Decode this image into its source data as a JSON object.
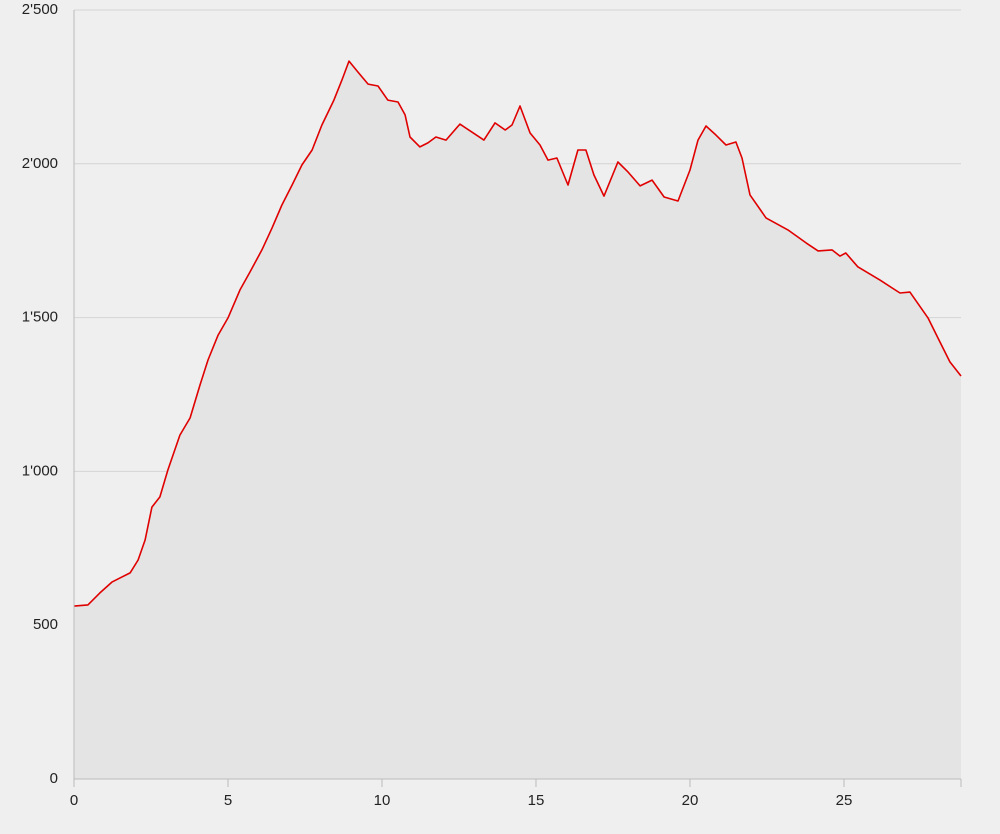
{
  "chart_data": {
    "type": "area",
    "x": [
      0,
      0.45,
      0.84,
      1.23,
      1.56,
      1.82,
      2.08,
      2.31,
      2.53,
      2.79,
      3.05,
      3.44,
      3.77,
      4.09,
      4.35,
      4.68,
      5,
      5.39,
      5.71,
      6.1,
      6.43,
      6.75,
      7.08,
      7.4,
      7.73,
      8.05,
      8.44,
      8.7,
      8.93,
      9.22,
      9.55,
      9.87,
      10.19,
      10.52,
      10.75,
      10.91,
      11.23,
      11.49,
      11.75,
      12.08,
      12.53,
      12.92,
      13.31,
      13.67,
      14,
      14.22,
      14.48,
      14.81,
      15.13,
      15.39,
      15.68,
      16.04,
      16.36,
      16.62,
      16.88,
      17.21,
      17.66,
      17.99,
      18.38,
      18.77,
      19.16,
      19.61,
      20,
      20.26,
      20.52,
      20.84,
      21.17,
      21.49,
      21.69,
      21.95,
      22.47,
      23.18,
      23.77,
      24.16,
      24.61,
      24.87,
      25.06,
      25.45,
      26.17,
      26.82,
      27.14,
      27.73,
      28.05,
      28.44,
      28.8
    ],
    "values": [
      562,
      566,
      605,
      640,
      657,
      670,
      712,
      777,
      884,
      917,
      1005,
      1118,
      1174,
      1281,
      1362,
      1443,
      1499,
      1590,
      1648,
      1720,
      1791,
      1866,
      1931,
      1996,
      2045,
      2126,
      2207,
      2272,
      2334,
      2298,
      2259,
      2253,
      2207,
      2201,
      2159,
      2087,
      2055,
      2068,
      2087,
      2077,
      2129,
      2103,
      2077,
      2133,
      2110,
      2126,
      2188,
      2100,
      2061,
      2012,
      2019,
      1931,
      2045,
      2045,
      1964,
      1895,
      2006,
      1973,
      1928,
      1947,
      1892,
      1879,
      1980,
      2077,
      2123,
      2094,
      2061,
      2071,
      2019,
      1899,
      1824,
      1785,
      1743,
      1717,
      1720,
      1700,
      1710,
      1665,
      1622,
      1580,
      1583,
      1499,
      1434,
      1356,
      1310
    ],
    "color": "#e00000",
    "fill": "#e4e4e4",
    "xlim": [
      0,
      28.8
    ],
    "ylim": [
      0,
      2500
    ],
    "xticks": [
      0,
      5,
      10,
      15,
      20,
      25
    ],
    "yticks": [
      0,
      500,
      {
        "value": 1000,
        "label": "1'000"
      },
      {
        "value": 1500,
        "label": "1'500"
      },
      {
        "value": 2000,
        "label": "2'000"
      },
      {
        "value": 2500,
        "label": "2'500"
      }
    ],
    "grid": true
  }
}
